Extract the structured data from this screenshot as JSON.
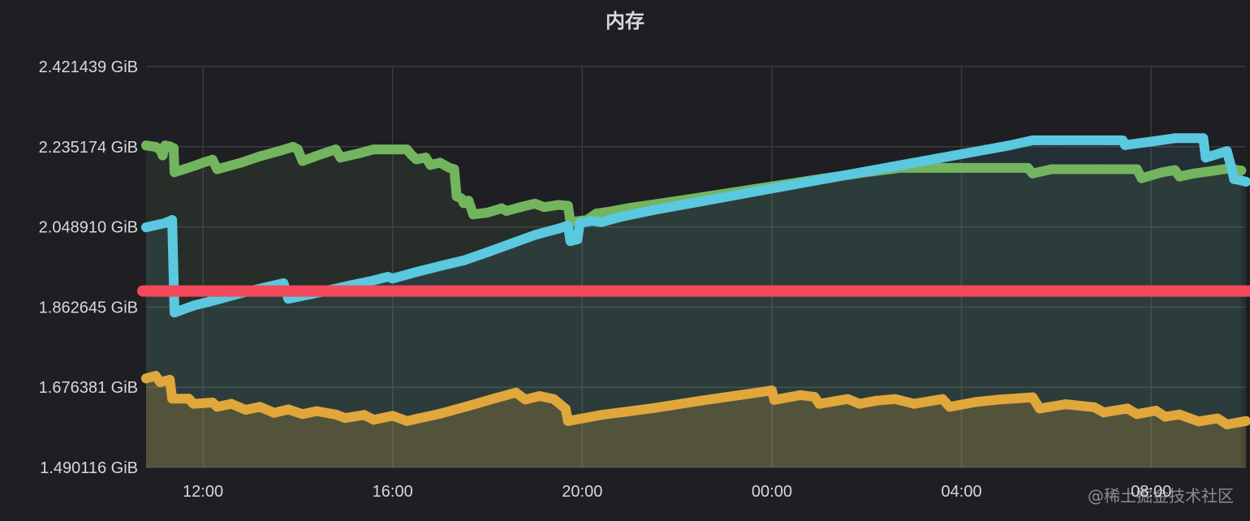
{
  "panel": {
    "title": "内存",
    "watermark": "@稀土掘金技术社区"
  },
  "colors": {
    "background": "#1f1f23",
    "grid": "#3a3a3f",
    "green": "#73b55f",
    "cyan": "#5ac8df",
    "orange": "#e0a73a",
    "threshold": "#f2495c"
  },
  "chart_data": {
    "type": "line",
    "title": "内存",
    "xlabel": "",
    "ylabel": "",
    "y_unit": "GiB",
    "ylim": [
      1.490116,
      2.421439
    ],
    "y_ticks": [
      "1.490116 GiB",
      "1.676381 GiB",
      "1.862645 GiB",
      "2.048910 GiB",
      "2.235174 GiB",
      "2.421439 GiB"
    ],
    "y_tick_values": [
      1.490116,
      1.676381,
      1.862645,
      2.04891,
      2.235174,
      2.421439
    ],
    "xlim": [
      10.8,
      34.0
    ],
    "x_ticks": [
      "12:00",
      "16:00",
      "20:00",
      "00:00",
      "04:00",
      "08:00"
    ],
    "x_tick_values": [
      12,
      16,
      20,
      24,
      28,
      32
    ],
    "x_note": "hours since 00:00 of the first day; values past 24 are the following day",
    "grid": true,
    "legend": "none",
    "threshold": {
      "value": 1.9,
      "color": "#f2495c"
    },
    "series": [
      {
        "color": "#73b55f",
        "fill": true,
        "points": [
          [
            10.8,
            2.238
          ],
          [
            11.0,
            2.235
          ],
          [
            11.1,
            2.228
          ],
          [
            11.15,
            2.215
          ],
          [
            11.2,
            2.238
          ],
          [
            11.3,
            2.236
          ],
          [
            11.38,
            2.232
          ],
          [
            11.4,
            2.176
          ],
          [
            11.6,
            2.183
          ],
          [
            11.85,
            2.192
          ],
          [
            12.0,
            2.198
          ],
          [
            12.2,
            2.205
          ],
          [
            12.3,
            2.183
          ],
          [
            12.8,
            2.198
          ],
          [
            13.2,
            2.213
          ],
          [
            13.6,
            2.225
          ],
          [
            13.9,
            2.235
          ],
          [
            14.0,
            2.229
          ],
          [
            14.1,
            2.202
          ],
          [
            14.5,
            2.218
          ],
          [
            14.8,
            2.229
          ],
          [
            14.9,
            2.21
          ],
          [
            15.3,
            2.22
          ],
          [
            15.6,
            2.229
          ],
          [
            16.3,
            2.229
          ],
          [
            16.4,
            2.216
          ],
          [
            16.5,
            2.206
          ],
          [
            16.7,
            2.21
          ],
          [
            16.8,
            2.193
          ],
          [
            17.0,
            2.198
          ],
          [
            17.2,
            2.186
          ],
          [
            17.3,
            2.183
          ],
          [
            17.35,
            2.12
          ],
          [
            17.45,
            2.115
          ],
          [
            17.5,
            2.104
          ],
          [
            17.6,
            2.11
          ],
          [
            17.7,
            2.078
          ],
          [
            18.0,
            2.082
          ],
          [
            18.3,
            2.092
          ],
          [
            18.4,
            2.086
          ],
          [
            18.7,
            2.095
          ],
          [
            19.0,
            2.103
          ],
          [
            19.2,
            2.095
          ],
          [
            19.5,
            2.1
          ],
          [
            19.7,
            2.098
          ],
          [
            19.75,
            2.06
          ],
          [
            20.1,
            2.065
          ],
          [
            20.3,
            2.08
          ],
          [
            20.6,
            2.085
          ],
          [
            21.0,
            2.093
          ],
          [
            22.0,
            2.109
          ],
          [
            23.0,
            2.126
          ],
          [
            24.0,
            2.143
          ],
          [
            25.0,
            2.16
          ],
          [
            26.0,
            2.176
          ],
          [
            26.7,
            2.186
          ],
          [
            28.0,
            2.186
          ],
          [
            29.0,
            2.186
          ],
          [
            29.4,
            2.186
          ],
          [
            29.5,
            2.173
          ],
          [
            29.9,
            2.183
          ],
          [
            30.4,
            2.183
          ],
          [
            31.0,
            2.183
          ],
          [
            31.7,
            2.183
          ],
          [
            31.8,
            2.162
          ],
          [
            32.2,
            2.175
          ],
          [
            32.5,
            2.181
          ],
          [
            32.6,
            2.166
          ],
          [
            32.9,
            2.173
          ],
          [
            33.3,
            2.179
          ],
          [
            33.6,
            2.184
          ],
          [
            33.9,
            2.18
          ]
        ]
      },
      {
        "color": "#5ac8df",
        "fill": true,
        "points": [
          [
            10.8,
            2.048
          ],
          [
            11.2,
            2.058
          ],
          [
            11.35,
            2.065
          ],
          [
            11.4,
            1.85
          ],
          [
            11.8,
            1.866
          ],
          [
            12.3,
            1.88
          ],
          [
            12.8,
            1.895
          ],
          [
            13.3,
            1.908
          ],
          [
            13.7,
            1.918
          ],
          [
            13.8,
            1.882
          ],
          [
            14.3,
            1.893
          ],
          [
            14.7,
            1.903
          ],
          [
            15.1,
            1.913
          ],
          [
            15.5,
            1.922
          ],
          [
            15.9,
            1.933
          ],
          [
            16.0,
            1.929
          ],
          [
            16.5,
            1.944
          ],
          [
            17.0,
            1.958
          ],
          [
            17.5,
            1.971
          ],
          [
            18.0,
            1.99
          ],
          [
            18.5,
            2.01
          ],
          [
            19.0,
            2.03
          ],
          [
            19.5,
            2.045
          ],
          [
            19.7,
            2.052
          ],
          [
            19.75,
            2.016
          ],
          [
            19.9,
            2.02
          ],
          [
            19.95,
            2.058
          ],
          [
            20.2,
            2.063
          ],
          [
            20.4,
            2.06
          ],
          [
            20.8,
            2.072
          ],
          [
            21.5,
            2.088
          ],
          [
            22.5,
            2.108
          ],
          [
            23.5,
            2.128
          ],
          [
            24.5,
            2.148
          ],
          [
            25.5,
            2.168
          ],
          [
            26.5,
            2.188
          ],
          [
            27.5,
            2.208
          ],
          [
            28.5,
            2.228
          ],
          [
            29.0,
            2.238
          ],
          [
            29.5,
            2.25
          ],
          [
            30.0,
            2.25
          ],
          [
            31.1,
            2.25
          ],
          [
            31.4,
            2.25
          ],
          [
            31.45,
            2.239
          ],
          [
            32.0,
            2.247
          ],
          [
            32.5,
            2.255
          ],
          [
            33.0,
            2.255
          ],
          [
            33.1,
            2.255
          ],
          [
            33.15,
            2.21
          ],
          [
            33.6,
            2.225
          ],
          [
            33.7,
            2.184
          ],
          [
            33.75,
            2.16
          ],
          [
            33.85,
            2.158
          ],
          [
            34.0,
            2.154
          ]
        ]
      },
      {
        "color": "#e0a73a",
        "fill": true,
        "points": [
          [
            10.8,
            1.697
          ],
          [
            11.0,
            1.703
          ],
          [
            11.1,
            1.688
          ],
          [
            11.3,
            1.694
          ],
          [
            11.35,
            1.65
          ],
          [
            11.7,
            1.65
          ],
          [
            11.8,
            1.638
          ],
          [
            12.2,
            1.641
          ],
          [
            12.3,
            1.631
          ],
          [
            12.6,
            1.638
          ],
          [
            12.9,
            1.624
          ],
          [
            13.2,
            1.631
          ],
          [
            13.5,
            1.617
          ],
          [
            13.8,
            1.625
          ],
          [
            14.1,
            1.614
          ],
          [
            14.4,
            1.621
          ],
          [
            14.8,
            1.613
          ],
          [
            15.0,
            1.605
          ],
          [
            15.4,
            1.612
          ],
          [
            15.6,
            1.601
          ],
          [
            16.0,
            1.61
          ],
          [
            16.3,
            1.598
          ],
          [
            17.0,
            1.615
          ],
          [
            17.6,
            1.633
          ],
          [
            18.2,
            1.652
          ],
          [
            18.6,
            1.664
          ],
          [
            18.8,
            1.648
          ],
          [
            19.1,
            1.656
          ],
          [
            19.4,
            1.649
          ],
          [
            19.65,
            1.626
          ],
          [
            19.7,
            1.598
          ],
          [
            20.4,
            1.612
          ],
          [
            21.5,
            1.628
          ],
          [
            22.5,
            1.645
          ],
          [
            23.5,
            1.661
          ],
          [
            24.0,
            1.669
          ],
          [
            24.05,
            1.647
          ],
          [
            24.6,
            1.658
          ],
          [
            24.9,
            1.654
          ],
          [
            25.0,
            1.638
          ],
          [
            25.6,
            1.649
          ],
          [
            25.85,
            1.638
          ],
          [
            26.2,
            1.645
          ],
          [
            26.6,
            1.649
          ],
          [
            27.0,
            1.638
          ],
          [
            27.6,
            1.649
          ],
          [
            27.75,
            1.631
          ],
          [
            28.3,
            1.642
          ],
          [
            28.8,
            1.648
          ],
          [
            29.5,
            1.653
          ],
          [
            29.65,
            1.627
          ],
          [
            30.2,
            1.637
          ],
          [
            30.8,
            1.63
          ],
          [
            31.0,
            1.618
          ],
          [
            31.5,
            1.627
          ],
          [
            31.7,
            1.614
          ],
          [
            32.1,
            1.622
          ],
          [
            32.3,
            1.608
          ],
          [
            32.6,
            1.613
          ],
          [
            33.0,
            1.597
          ],
          [
            33.4,
            1.604
          ],
          [
            33.6,
            1.59
          ],
          [
            34.0,
            1.598
          ]
        ]
      }
    ]
  }
}
